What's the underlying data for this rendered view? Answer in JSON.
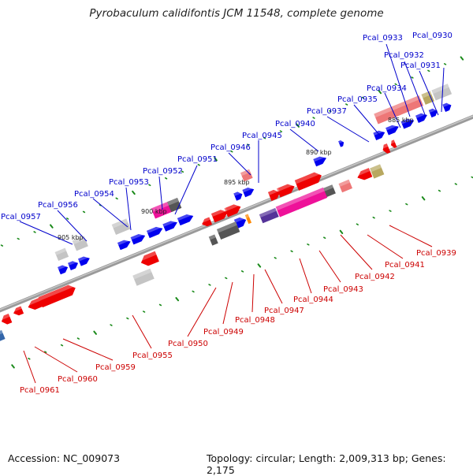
{
  "title": "Pyrobaculum calidifontis JCM 11548, complete genome",
  "footer": {
    "accession": "Accession: NC_009073",
    "topology": "Topology: circular; Length: 2,009,313 bp; Genes: 2,175"
  },
  "colors": {
    "backbone": "#8a8a8a",
    "tick": "#1a8a1a",
    "label_top": "#0000cc",
    "label_bottom": "#cc0000",
    "gene_blue": "#0000ee",
    "gene_red": "#ee0000",
    "gene_pink": "#ee1199",
    "gene_salmon": "#ee7777",
    "gene_gray": "#888888",
    "gene_lightgray": "#c4c4c4",
    "gene_dark": "#555555",
    "gene_olive": "#b8a860",
    "gene_purple": "#553399",
    "gene_orange": "#ff8800",
    "gene_steel": "#3366aa"
  },
  "scale_labels": [
    "885 kbp",
    "890 kbp",
    "895 kbp",
    "900 kbp",
    "905 kbp"
  ],
  "top_labels": [
    "Pcal_0930",
    "Pcal_0933",
    "Pcal_0932",
    "Pcal_0931",
    "Pcal_0934",
    "Pcal_0935",
    "Pcal_0937",
    "Pcal_0940",
    "Pcal_0945",
    "Pcal_0946",
    "Pcal_0951",
    "Pcal_0952",
    "Pcal_0953",
    "Pcal_0954",
    "Pcal_0956",
    "Pcal_0957"
  ],
  "bottom_labels": [
    "Pcal_0939",
    "Pcal_0941",
    "Pcal_0942",
    "Pcal_0943",
    "Pcal_0944",
    "Pcal_0947",
    "Pcal_0948",
    "Pcal_0949",
    "Pcal_0950",
    "Pcal_0955",
    "Pcal_0959",
    "Pcal_0960",
    "Pcal_0961"
  ]
}
